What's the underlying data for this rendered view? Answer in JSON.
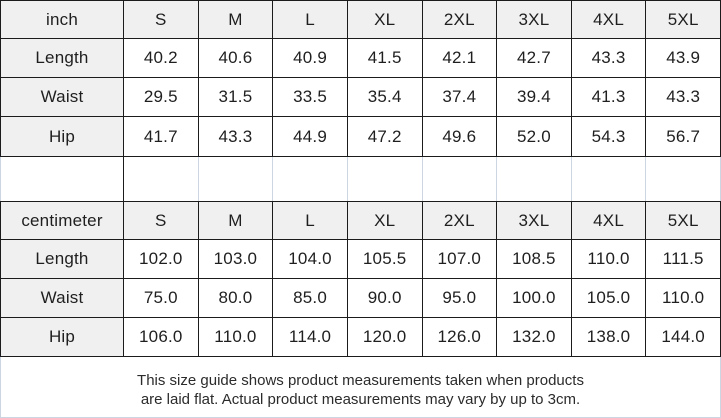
{
  "sizes": [
    "S",
    "M",
    "L",
    "XL",
    "2XL",
    "3XL",
    "4XL",
    "5XL"
  ],
  "inch_table": {
    "unit_label": "inch",
    "rows": [
      {
        "label": "Length",
        "values": [
          "40.2",
          "40.6",
          "40.9",
          "41.5",
          "42.1",
          "42.7",
          "43.3",
          "43.9"
        ]
      },
      {
        "label": "Waist",
        "values": [
          "29.5",
          "31.5",
          "33.5",
          "35.4",
          "37.4",
          "39.4",
          "41.3",
          "43.3"
        ]
      },
      {
        "label": "Hip",
        "values": [
          "41.7",
          "43.3",
          "44.9",
          "47.2",
          "49.6",
          "52.0",
          "54.3",
          "56.7"
        ]
      }
    ]
  },
  "cm_table": {
    "unit_label": "centimeter",
    "rows": [
      {
        "label": "Length",
        "values": [
          "102.0",
          "103.0",
          "104.0",
          "105.5",
          "107.0",
          "108.5",
          "110.0",
          "111.5"
        ]
      },
      {
        "label": "Waist",
        "values": [
          "75.0",
          "80.0",
          "85.0",
          "90.0",
          "95.0",
          "100.0",
          "105.0",
          "110.0"
        ]
      },
      {
        "label": "Hip",
        "values": [
          "106.0",
          "110.0",
          "114.0",
          "120.0",
          "126.0",
          "132.0",
          "138.0",
          "144.0"
        ]
      }
    ]
  },
  "footer": {
    "line1": "This size guide shows product measurements taken when products",
    "line2": "are laid flat. Actual product measurements may vary by up to 3cm."
  },
  "colors": {
    "header_bg": "#f0f0f0",
    "grid_dark": "#1b1b1b",
    "grid_light": "#ccd6e2",
    "text": "#1f1f1f"
  }
}
